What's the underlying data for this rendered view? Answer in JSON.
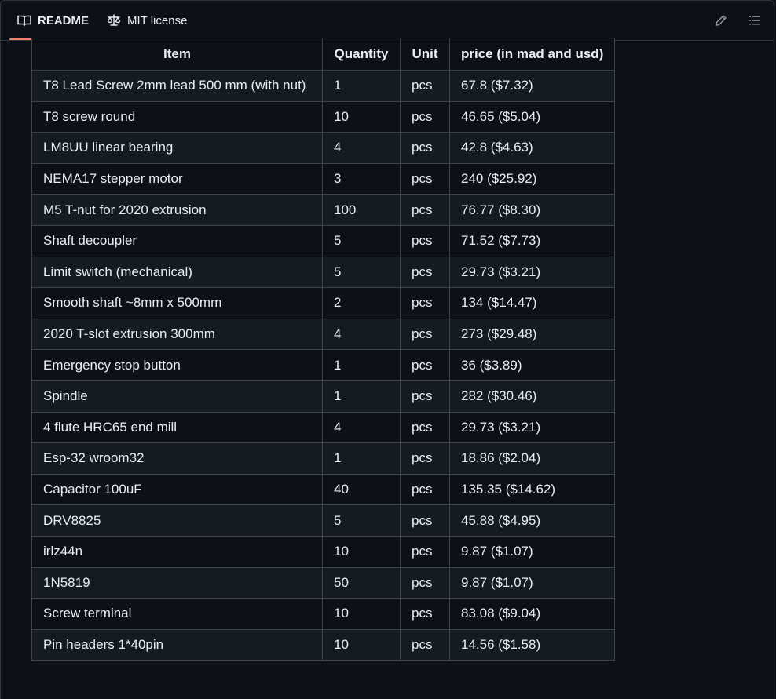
{
  "tabs": [
    {
      "label": "README",
      "icon": "book-icon",
      "active": true
    },
    {
      "label": "MIT license",
      "icon": "law-scale-icon",
      "active": false
    }
  ],
  "actions": {
    "edit_icon": "pencil-icon",
    "outline_icon": "list-unordered-icon"
  },
  "colors": {
    "background": "#0d1117",
    "border": "#3d444d",
    "active_tab_underline": "#f78166",
    "row_alt": "#151b23",
    "text": "#e6edf3"
  },
  "table": {
    "headers": [
      "Item",
      "Quantity",
      "Unit",
      "price (in mad and usd)"
    ],
    "rows": [
      [
        "T8 Lead Screw 2mm lead 500 mm (with nut)",
        "1",
        "pcs",
        "67.8 ($7.32)"
      ],
      [
        "T8 screw round",
        "10",
        "pcs",
        "46.65 ($5.04)"
      ],
      [
        "LM8UU linear bearing",
        "4",
        "pcs",
        "42.8 ($4.63)"
      ],
      [
        "NEMA17 stepper motor",
        "3",
        "pcs",
        "240 ($25.92)"
      ],
      [
        "M5 T-nut for 2020 extrusion",
        "100",
        "pcs",
        "76.77 ($8.30)"
      ],
      [
        "Shaft decoupler",
        "5",
        "pcs",
        "71.52 ($7.73)"
      ],
      [
        "Limit switch (mechanical)",
        "5",
        "pcs",
        "29.73 ($3.21)"
      ],
      [
        "Smooth shaft ~8mm x 500mm",
        "2",
        "pcs",
        "134 ($14.47)"
      ],
      [
        "2020 T-slot extrusion 300mm",
        "4",
        "pcs",
        "273 ($29.48)"
      ],
      [
        "Emergency stop button",
        "1",
        "pcs",
        "36 ($3.89)"
      ],
      [
        "Spindle",
        "1",
        "pcs",
        "282 ($30.46)"
      ],
      [
        "4 flute HRC65 end mill",
        "4",
        "pcs",
        "29.73 ($3.21)"
      ],
      [
        "Esp-32 wroom32",
        "1",
        "pcs",
        "18.86 ($2.04)"
      ],
      [
        "Capacitor 100uF",
        "40",
        "pcs",
        "135.35 ($14.62)"
      ],
      [
        "DRV8825",
        "5",
        "pcs",
        "45.88 ($4.95)"
      ],
      [
        "irlz44n",
        "10",
        "pcs",
        "9.87 ($1.07)"
      ],
      [
        "1N5819",
        "50",
        "pcs",
        "9.87 ($1.07)"
      ],
      [
        "Screw terminal",
        "10",
        "pcs",
        "83.08 ($9.04)"
      ],
      [
        "Pin headers 1*40pin",
        "10",
        "pcs",
        "14.56 ($1.58)"
      ]
    ]
  }
}
